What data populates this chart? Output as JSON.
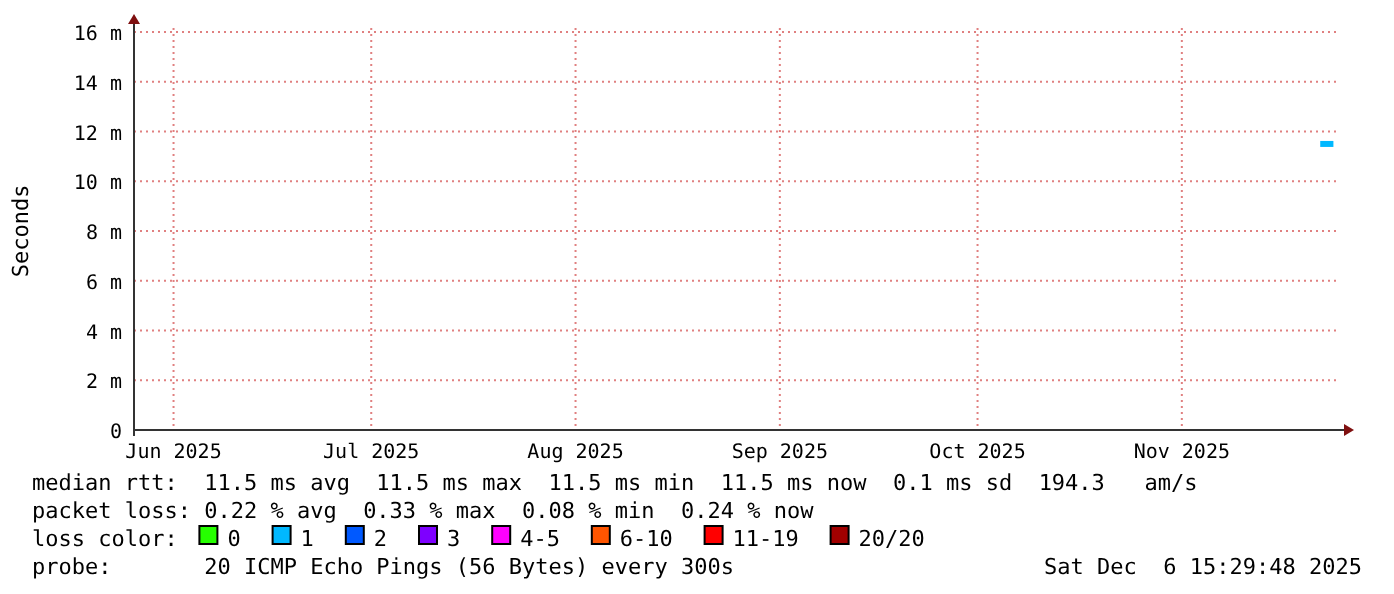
{
  "chart_data": {
    "type": "line",
    "ylabel": "Seconds",
    "legend_title": "loss color:",
    "legend": "bottom",
    "grid": true,
    "x": [
      "2025-11-22",
      "2025-11-24"
    ],
    "xlim": [
      "2025-05-26",
      "2025-11-25"
    ],
    "xticks": [
      {
        "value": "2025-06-01",
        "label": "Jun 2025"
      },
      {
        "value": "2025-07-01",
        "label": "Jul 2025"
      },
      {
        "value": "2025-08-01",
        "label": "Aug 2025"
      },
      {
        "value": "2025-09-01",
        "label": "Sep 2025"
      },
      {
        "value": "2025-10-01",
        "label": "Oct 2025"
      },
      {
        "value": "2025-11-01",
        "label": "Nov 2025"
      }
    ],
    "ylim": [
      0,
      16
    ],
    "yticks": [
      0,
      {
        "value": 2,
        "label": "2 m"
      },
      {
        "value": 4,
        "label": "4 m"
      },
      {
        "value": 6,
        "label": "6 m"
      },
      {
        "value": 8,
        "label": "8 m"
      },
      {
        "value": 10,
        "label": "10 m"
      },
      {
        "value": 12,
        "label": "12 m"
      },
      {
        "value": 14,
        "label": "14 m"
      },
      {
        "value": 16,
        "label": "16 m"
      }
    ],
    "series": [
      {
        "name": "0",
        "color": "#26ff00",
        "values": [
          null,
          null
        ]
      },
      {
        "name": "1",
        "color": "#00b8ff",
        "values": [
          11.5,
          11.5
        ]
      },
      {
        "name": "2",
        "color": "#0059ff",
        "values": [
          null,
          null
        ]
      },
      {
        "name": "3",
        "color": "#7e00ff",
        "values": [
          null,
          null
        ]
      },
      {
        "name": "4-5",
        "color": "#ff00ff",
        "values": [
          null,
          null
        ]
      },
      {
        "name": "6-10",
        "color": "#ff5500",
        "values": [
          null,
          null
        ]
      },
      {
        "name": "11-19",
        "color": "#ff0000",
        "values": [
          null,
          null
        ]
      },
      {
        "name": "20/20",
        "color": "#a10000",
        "values": [
          null,
          null
        ]
      }
    ],
    "annotations": [
      "median rtt:  11.5 ms avg  11.5 ms max  11.5 ms min  11.5 ms now  0.1 ms sd  194.3   am/s",
      "packet loss: 0.22 % avg  0.33 % max  0.08 % min  0.24 % now",
      "probe:       20 ICMP Echo Pings (56 Bytes) every 300s",
      "Sat Dec  6 15:29:48 2025"
    ]
  }
}
